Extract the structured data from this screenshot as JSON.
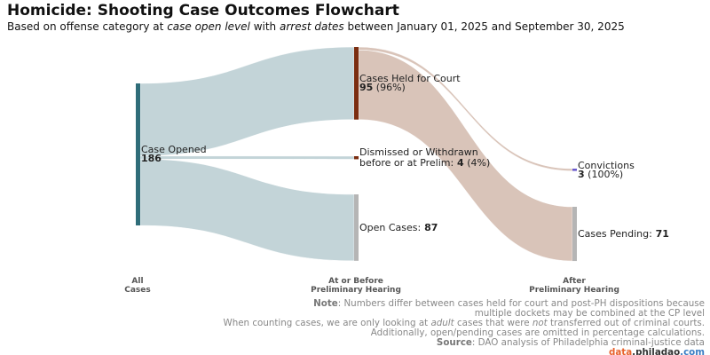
{
  "title": "Homicide: Shooting Case Outcomes Flowchart",
  "subtitle": {
    "pre": "Based on offense category at ",
    "em1": "case open level",
    "mid": " with ",
    "em2": "arrest dates",
    "post": " between January 01, 2025 and September 30, 2025"
  },
  "chart_data": {
    "type": "sankey",
    "stages": [
      "All\nCases",
      "At or Before\nPreliminary Hearing",
      "After\nPreliminary Hearing"
    ],
    "nodes": [
      {
        "id": "open",
        "stage": 0,
        "label": "Case Opened",
        "value": 186,
        "pct": "",
        "color": "#2f6d79"
      },
      {
        "id": "held",
        "stage": 1,
        "label": "Cases Held for Court",
        "value": 95,
        "pct": "(96%)",
        "color": "#7b2d10"
      },
      {
        "id": "dism",
        "stage": 1,
        "label": "Dismissed or Withdrawn\nbefore or at Prelim:",
        "value": 4,
        "pct": "(4%)",
        "color": "#7b2d10"
      },
      {
        "id": "openc",
        "stage": 1,
        "label": "Open Cases:",
        "value": 87,
        "pct": "",
        "color": "#b5b5b5"
      },
      {
        "id": "conv",
        "stage": 2,
        "label": "Convictions",
        "value": 3,
        "pct": "(100%)",
        "color": "#6a5acd"
      },
      {
        "id": "pend",
        "stage": 2,
        "label": "Cases Pending:",
        "value": 71,
        "pct": "",
        "color": "#b5b5b5"
      }
    ],
    "links": [
      {
        "from": "open",
        "to": "held",
        "value": 95,
        "color": "#c3d4d8"
      },
      {
        "from": "open",
        "to": "dism",
        "value": 4,
        "color": "#c3d4d8"
      },
      {
        "from": "open",
        "to": "openc",
        "value": 87,
        "color": "#c3d4d8"
      },
      {
        "from": "held",
        "to": "conv",
        "value": 3,
        "color": "#d9c4b9"
      },
      {
        "from": "held",
        "to": "pend",
        "value": 71,
        "color": "#d9c4b9"
      }
    ]
  },
  "notes": {
    "note_label": "Note",
    "note1": ": Numbers differ between cases held for court and post-PH dispositions because",
    "note2": "multiple dockets may be combined at the CP level",
    "l3a": "When counting cases, we are only looking at ",
    "l3b": "adult",
    "l3c": " cases that were ",
    "l3d": "not",
    "l3e": " transferred out of criminal courts.",
    "l4": "Additionally, open/pending cases are omitted in percentage calculations.",
    "source_label": "Source",
    "source": ": DAO analysis of Philadelphia criminal-justice data",
    "brand1": "data",
    "brand2": ".philadao",
    "brand3": ".com",
    "colors": {
      "brand1": "#e8612c",
      "brand2": "#333333",
      "brand3": "#3b7dc4"
    }
  }
}
